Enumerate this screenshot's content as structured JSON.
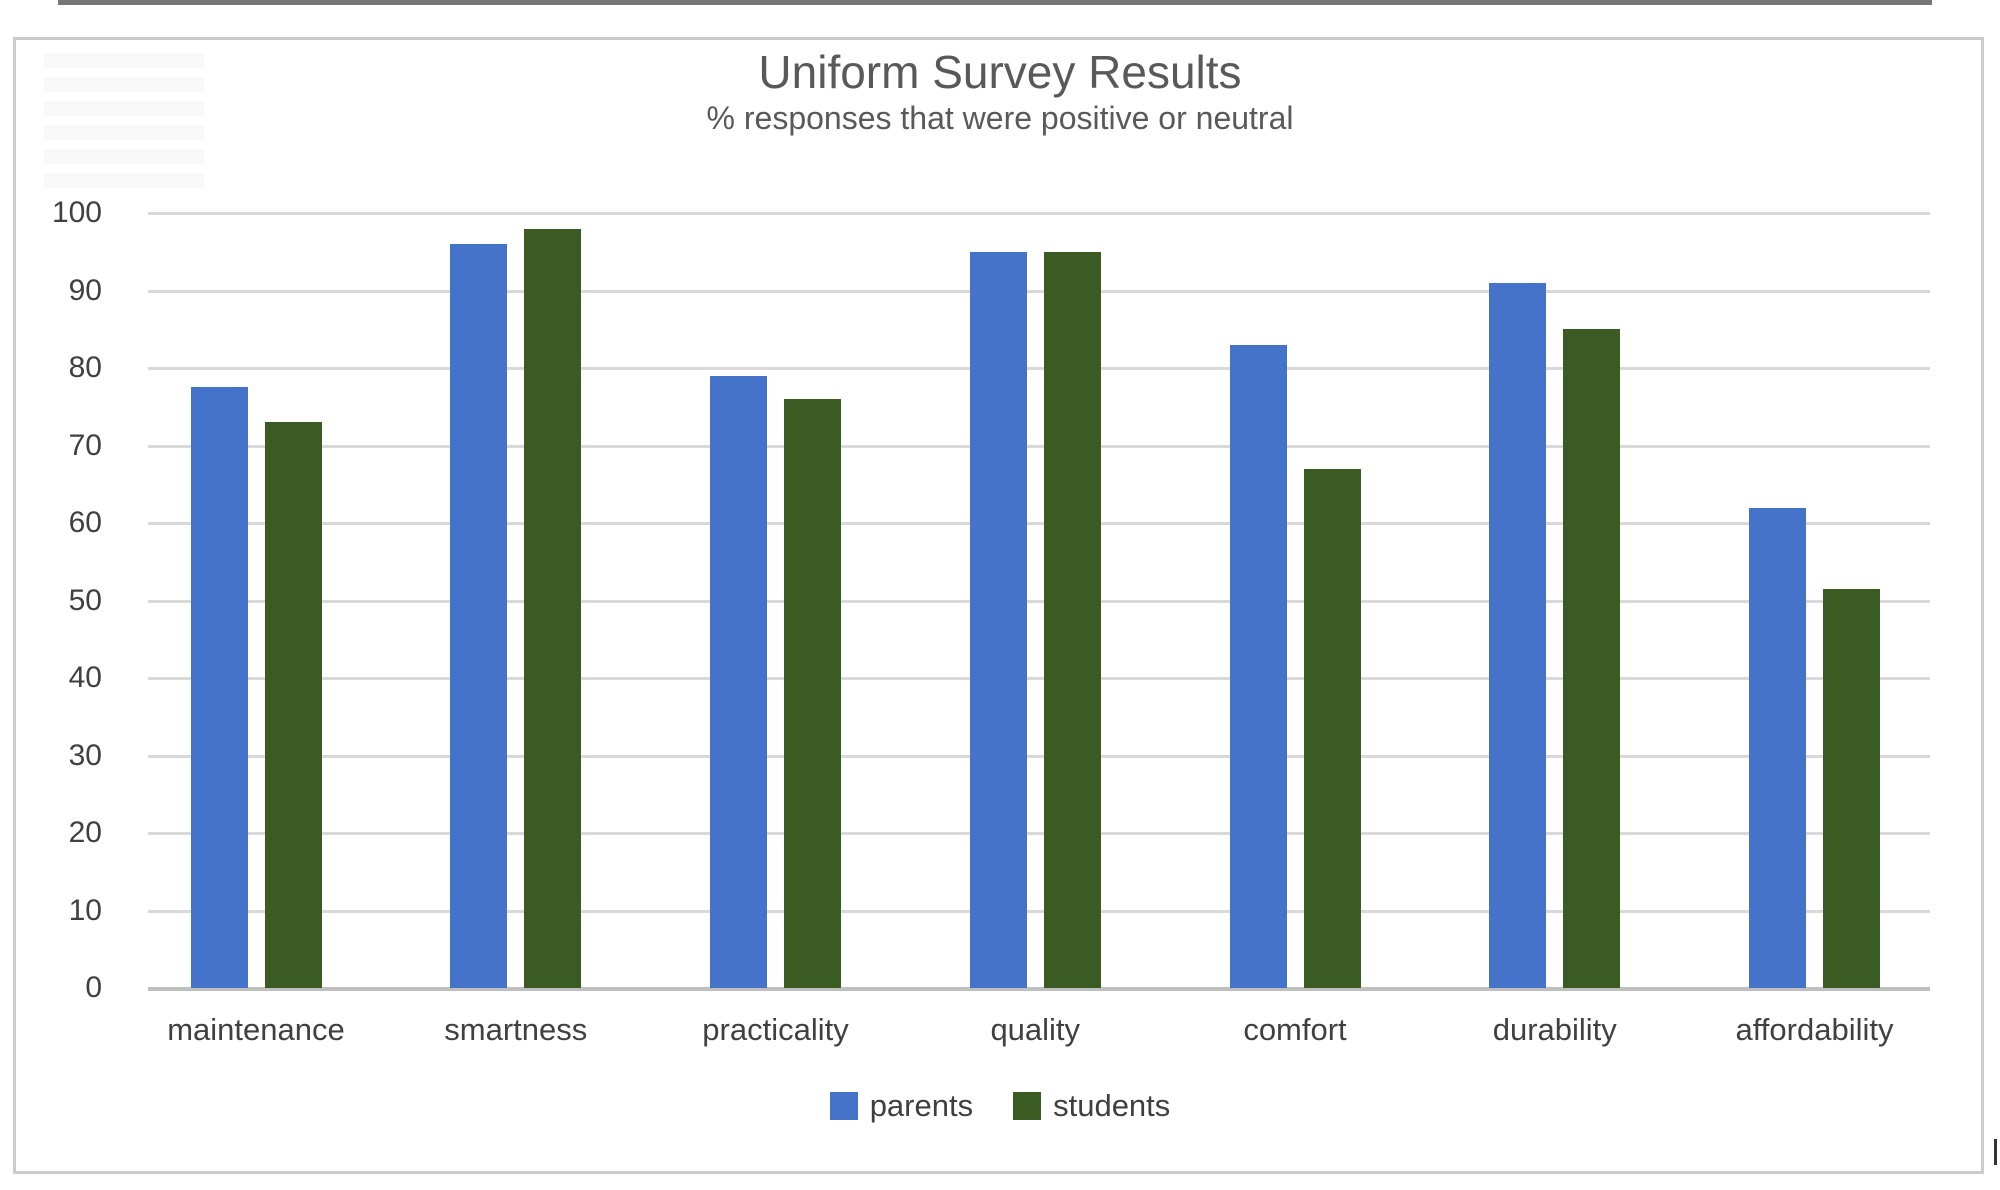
{
  "chart": {
    "title": "Uniform Survey Results",
    "subtitle": "% responses that were positive or neutral"
  },
  "chart_data": {
    "type": "bar",
    "title": "Uniform Survey Results",
    "subtitle": "% responses that were positive or neutral",
    "categories": [
      "maintenance",
      "smartness",
      "practicality",
      "quality",
      "comfort",
      "durability",
      "affordability"
    ],
    "series": [
      {
        "name": "parents",
        "color": "#4473C9",
        "values": [
          77.5,
          96,
          79,
          95,
          83,
          91,
          62
        ]
      },
      {
        "name": "students",
        "color": "#3A5C22",
        "values": [
          73,
          98,
          76,
          95,
          67,
          85,
          51.5
        ]
      }
    ],
    "xlabel": "",
    "ylabel": "",
    "ylim": [
      0,
      100
    ],
    "yticks": [
      0,
      10,
      20,
      30,
      40,
      50,
      60,
      70,
      80,
      90,
      100
    ],
    "grid": "horizontal",
    "legend_position": "bottom"
  }
}
